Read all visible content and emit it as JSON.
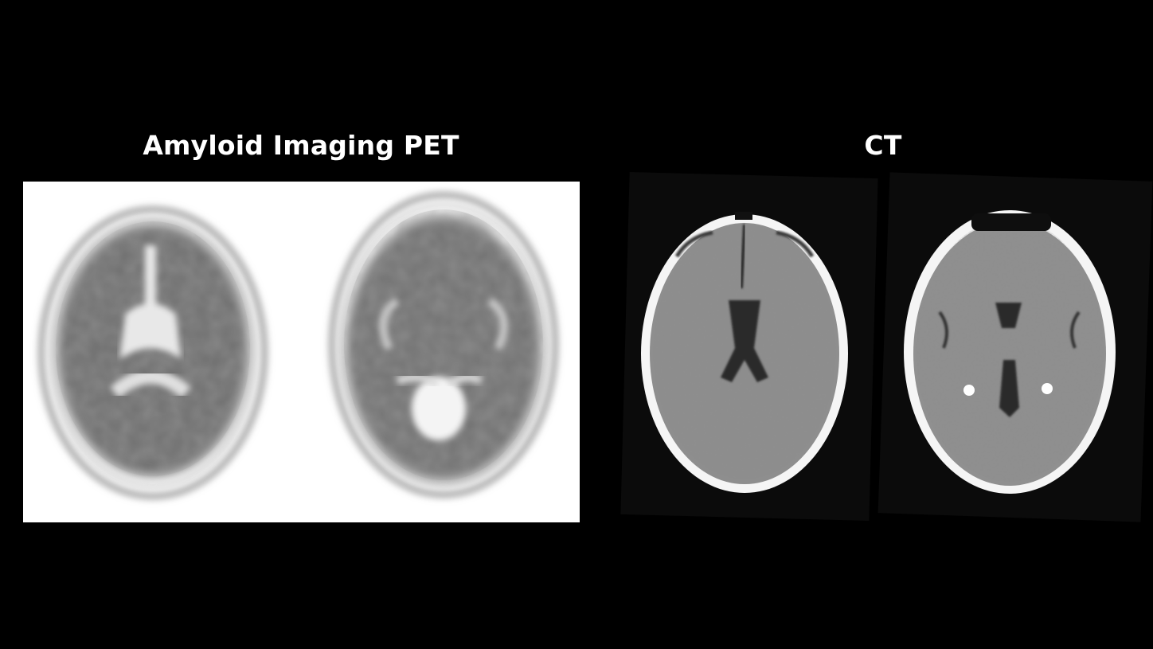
{
  "pet": {
    "title": "Amyloid Imaging PET"
  },
  "ct": {
    "title": "CT"
  },
  "colors": {
    "background": "#000000",
    "pet_panel_background": "#ffffff",
    "title_text": "#ffffff"
  }
}
